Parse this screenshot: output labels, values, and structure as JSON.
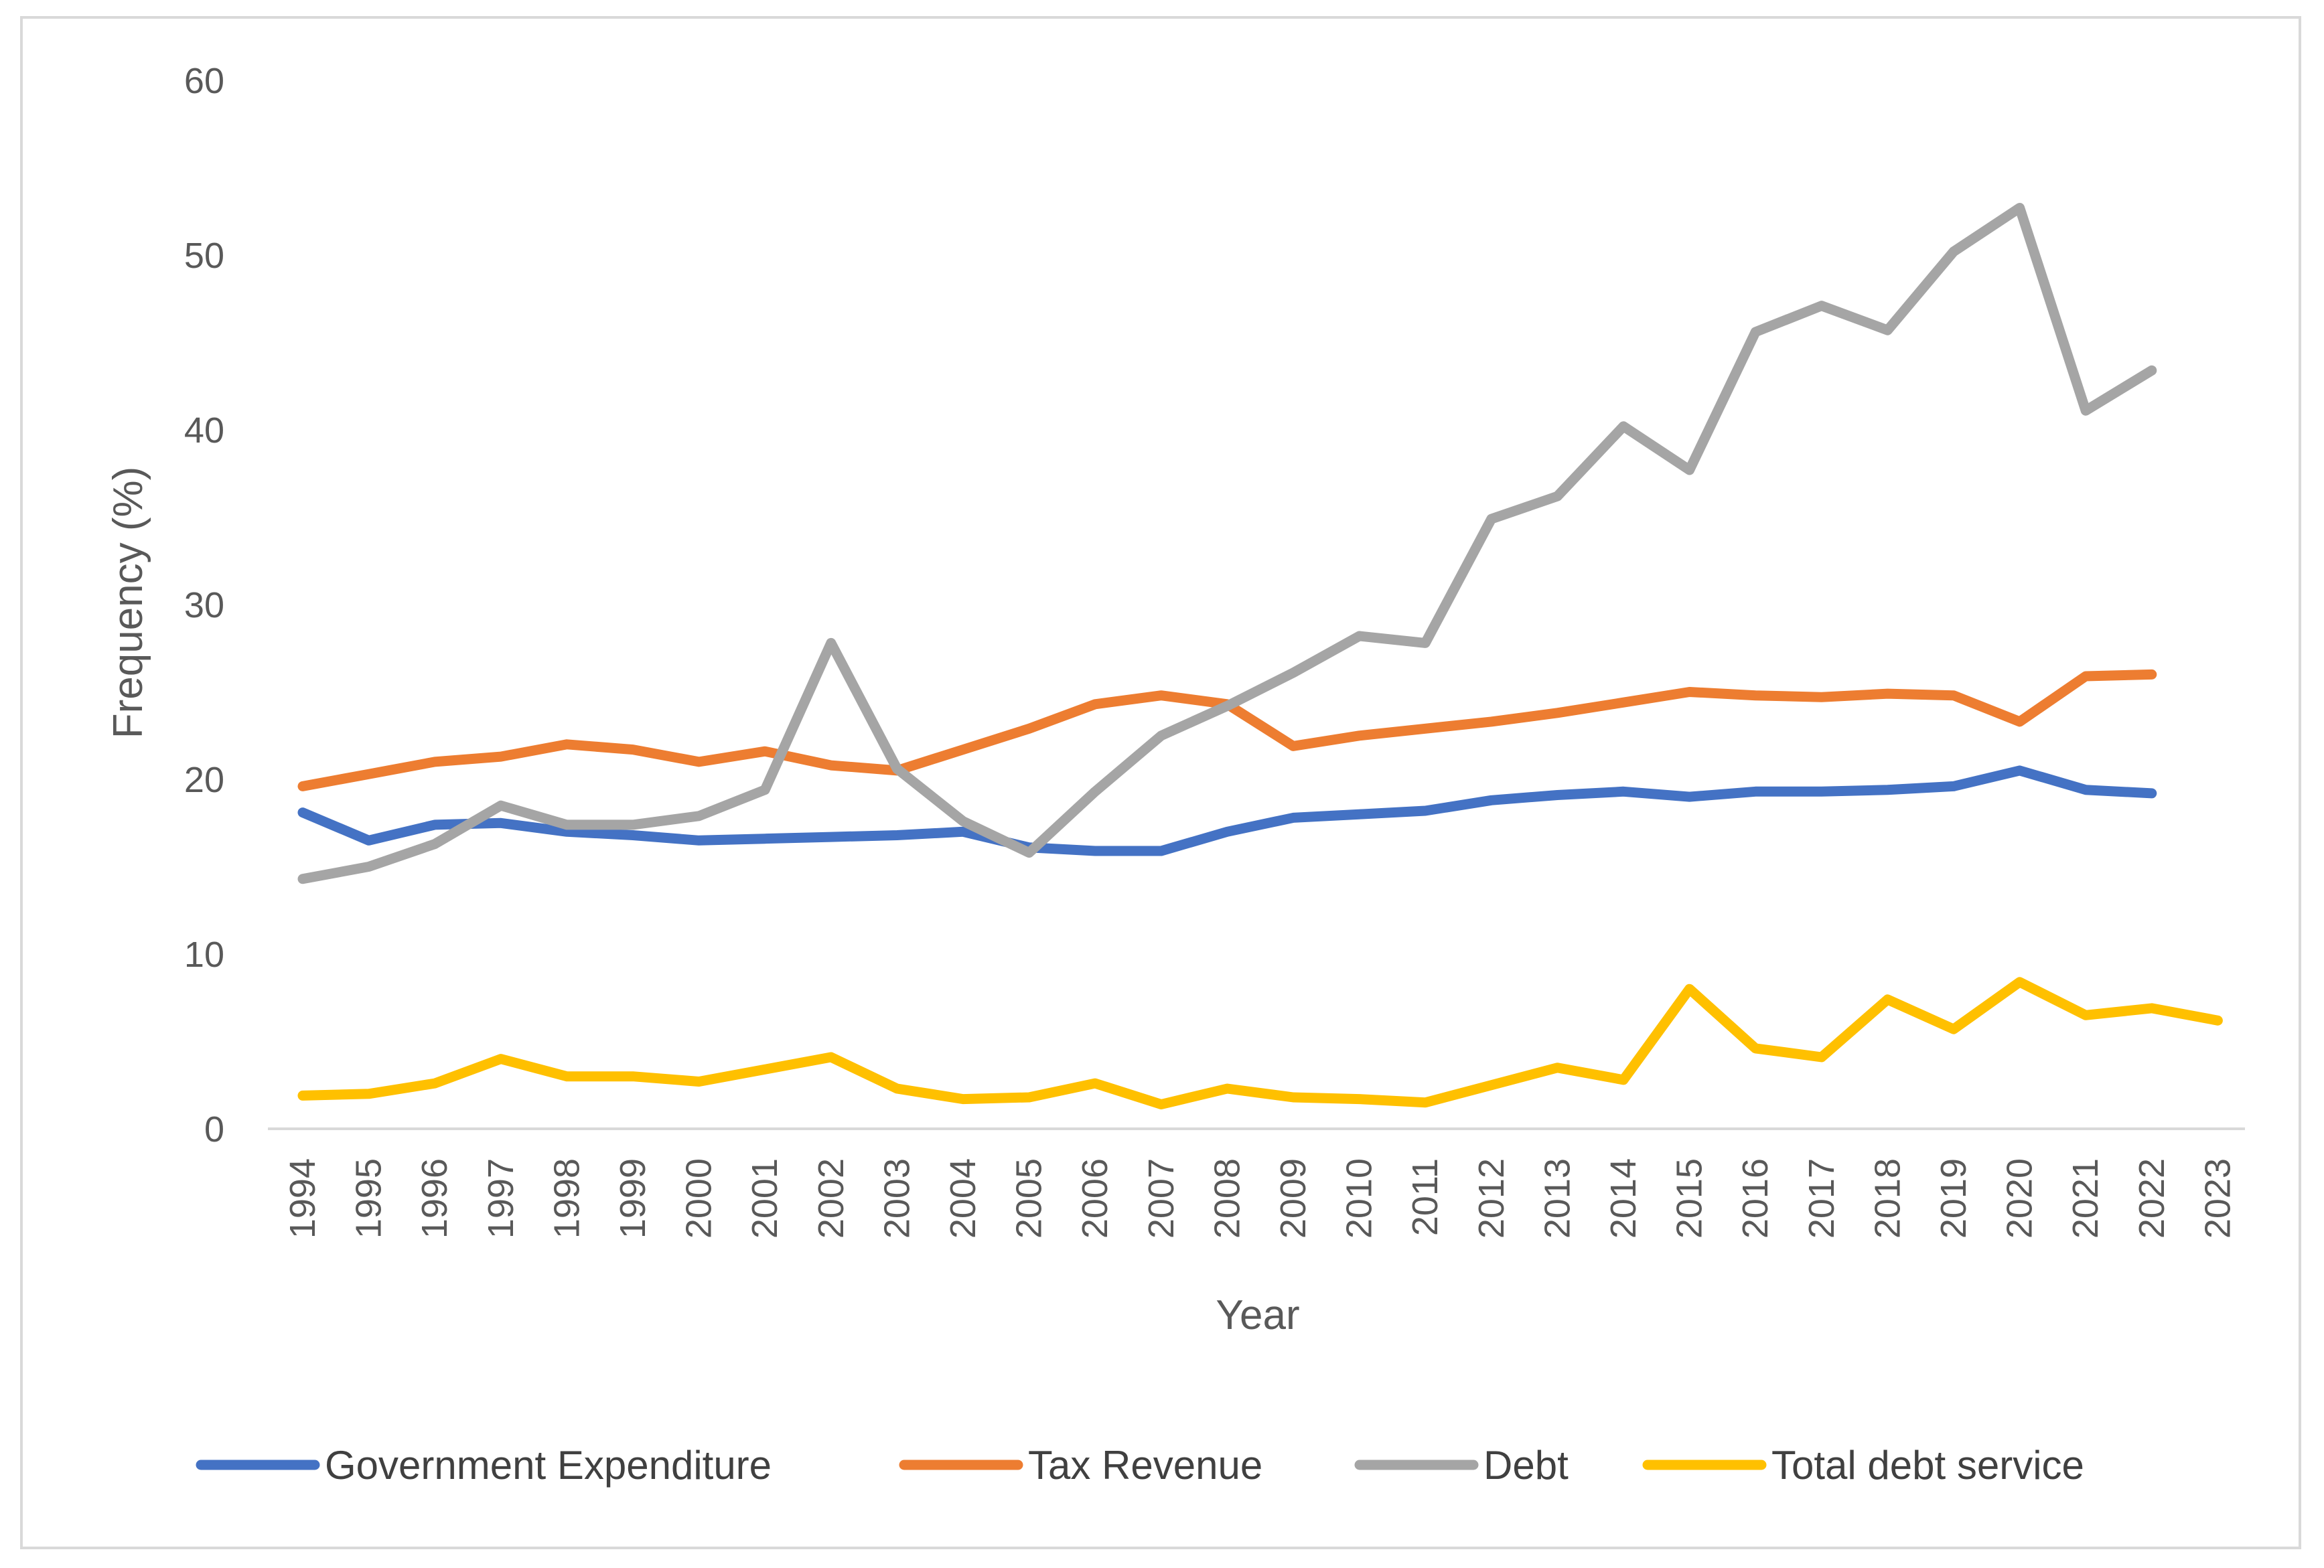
{
  "chart_data": {
    "type": "line",
    "title": "",
    "xlabel": "Year",
    "ylabel": "Frequency (%)",
    "ylim": [
      0,
      60
    ],
    "yticks": [
      "0",
      "10",
      "20",
      "30",
      "40",
      "50",
      "60"
    ],
    "grid": false,
    "legend_position": "bottom",
    "categories": [
      "1994",
      "1995",
      "1996",
      "1997",
      "1998",
      "1999",
      "2000",
      "2001",
      "2002",
      "2003",
      "2004",
      "2005",
      "2006",
      "2007",
      "2008",
      "2009",
      "2010",
      "2011",
      "2012",
      "2013",
      "2014",
      "2015",
      "2016",
      "2017",
      "2018",
      "2019",
      "2020",
      "2021",
      "2022",
      "2023"
    ],
    "series": [
      {
        "name": "Government Expenditure",
        "color": "#4472c4",
        "values": [
          18.1,
          16.5,
          17.4,
          17.5,
          17.0,
          16.8,
          16.5,
          16.6,
          16.7,
          16.8,
          17.0,
          16.1,
          15.9,
          15.9,
          17.0,
          17.8,
          18.0,
          18.2,
          18.8,
          19.1,
          19.3,
          19.0,
          19.3,
          19.3,
          19.4,
          19.6,
          20.5,
          19.4,
          19.2,
          null
        ]
      },
      {
        "name": "Tax Revenue",
        "color": "#ed7d31",
        "values": [
          19.6,
          20.3,
          21.0,
          21.3,
          22.0,
          21.7,
          21.0,
          21.6,
          20.8,
          20.5,
          21.7,
          22.9,
          24.3,
          24.8,
          24.3,
          21.9,
          22.5,
          22.9,
          23.3,
          23.8,
          24.4,
          25.0,
          24.8,
          24.7,
          24.9,
          24.8,
          23.3,
          25.9,
          26.0,
          null
        ]
      },
      {
        "name": "Debt",
        "color": "#a5a5a5",
        "values": [
          14.3,
          15.0,
          16.3,
          18.5,
          17.4,
          17.4,
          17.9,
          19.4,
          27.8,
          20.6,
          17.6,
          15.8,
          19.3,
          22.5,
          24.2,
          26.1,
          28.2,
          27.8,
          34.9,
          36.2,
          40.2,
          37.7,
          45.6,
          47.1,
          45.7,
          50.2,
          52.7,
          41.1,
          43.4,
          null
        ]
      },
      {
        "name": "Total debt service",
        "color": "#ffc000",
        "values": [
          1.9,
          2.0,
          2.6,
          4.0,
          3.0,
          3.0,
          2.7,
          3.4,
          4.1,
          2.3,
          1.7,
          1.8,
          2.6,
          1.4,
          2.3,
          1.8,
          1.7,
          1.5,
          2.5,
          3.5,
          2.8,
          8.0,
          4.6,
          4.1,
          7.4,
          5.7,
          8.4,
          6.5,
          6.9,
          6.2
        ]
      }
    ]
  }
}
